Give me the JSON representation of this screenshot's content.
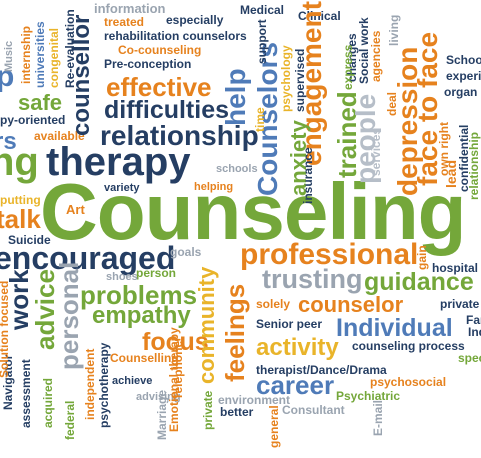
{
  "colors": {
    "green": "#74a73a",
    "dark_green": "#5a8f2a",
    "orange": "#e6821e",
    "blue": "#4f7bb8",
    "navy": "#253e63",
    "gray": "#9aa4b0",
    "light_gray": "#b6bec8",
    "yellow": "#e9b42a"
  },
  "words": [
    {
      "text": "Counseling",
      "c": "green"
    },
    {
      "text": "therapy",
      "c": "navy"
    },
    {
      "text": "encouraged",
      "c": "navy"
    },
    {
      "text": "relationship",
      "c": "navy"
    },
    {
      "text": "effective",
      "c": "orange"
    },
    {
      "text": "difficulties",
      "c": "navy"
    },
    {
      "text": "professional",
      "c": "orange"
    },
    {
      "text": "trusting",
      "c": "gray"
    },
    {
      "text": "guidance",
      "c": "green"
    },
    {
      "text": "problems",
      "c": "green"
    },
    {
      "text": "empathy",
      "c": "green"
    },
    {
      "text": "counselor",
      "c": "orange"
    },
    {
      "text": "Individual",
      "c": "blue"
    },
    {
      "text": "focus",
      "c": "orange"
    },
    {
      "text": "activity",
      "c": "yellow"
    },
    {
      "text": "career",
      "c": "blue"
    },
    {
      "text": "safe",
      "c": "green"
    },
    {
      "text": "talk",
      "c": "orange"
    },
    {
      "text": "Art",
      "c": "orange"
    },
    {
      "text": "Suicide",
      "c": "navy"
    },
    {
      "text": "goals",
      "c": "gray"
    },
    {
      "text": "person",
      "c": "green"
    },
    {
      "text": "shoes",
      "c": "gray"
    },
    {
      "text": "solely",
      "c": "orange"
    },
    {
      "text": "Senior peer",
      "c": "navy"
    },
    {
      "text": "hospital",
      "c": "navy"
    },
    {
      "text": "private",
      "c": "navy"
    },
    {
      "text": "counseling process",
      "c": "navy"
    },
    {
      "text": "Counselling",
      "c": "orange"
    },
    {
      "text": "therapist/Dance/Drama",
      "c": "navy"
    },
    {
      "text": "psychosocial",
      "c": "orange"
    },
    {
      "text": "Psychiatric",
      "c": "green"
    },
    {
      "text": "Consultant",
      "c": "gray"
    },
    {
      "text": "environment",
      "c": "gray"
    },
    {
      "text": "better",
      "c": "navy"
    },
    {
      "text": "schools",
      "c": "gray"
    },
    {
      "text": "helping",
      "c": "orange"
    },
    {
      "text": "variety",
      "c": "navy"
    },
    {
      "text": "putting",
      "c": "yellow"
    },
    {
      "text": "available",
      "c": "orange"
    },
    {
      "text": "py-oriented",
      "c": "navy"
    },
    {
      "text": "information",
      "c": "gray"
    },
    {
      "text": "treated",
      "c": "orange"
    },
    {
      "text": "especially",
      "c": "navy"
    },
    {
      "text": "Medical",
      "c": "navy"
    },
    {
      "text": "Clinical",
      "c": "navy"
    },
    {
      "text": "rehabilitation counselors",
      "c": "navy"
    },
    {
      "text": "Co-counseling",
      "c": "orange"
    },
    {
      "text": "Pre-conception",
      "c": "navy"
    },
    {
      "text": "Schoo",
      "c": "navy"
    },
    {
      "text": "experi",
      "c": "navy"
    },
    {
      "text": "organ",
      "c": "navy"
    },
    {
      "text": "Family",
      "c": "navy"
    },
    {
      "text": "Individual",
      "c": "navy"
    },
    {
      "text": "spec",
      "c": "green"
    },
    {
      "text": "achieve",
      "c": "navy"
    },
    {
      "text": "advising",
      "c": "gray"
    },
    {
      "text": "rs",
      "c": "blue"
    },
    {
      "text": "ng",
      "c": "green"
    },
    {
      "text": "p",
      "c": "blue"
    },
    {
      "text": "counsellor",
      "c": "navy"
    },
    {
      "text": "help",
      "c": "blue"
    },
    {
      "text": "Counselors",
      "c": "blue"
    },
    {
      "text": "engagement",
      "c": "orange"
    },
    {
      "text": "anxiety",
      "c": "green"
    },
    {
      "text": "trained",
      "c": "green"
    },
    {
      "text": "people",
      "c": "light_gray"
    },
    {
      "text": "depression",
      "c": "orange"
    },
    {
      "text": "face to face",
      "c": "orange"
    },
    {
      "text": "community",
      "c": "yellow"
    },
    {
      "text": "feelings",
      "c": "orange"
    },
    {
      "text": "advice",
      "c": "green"
    },
    {
      "text": "personal",
      "c": "gray"
    },
    {
      "text": "work",
      "c": "navy"
    },
    {
      "text": "psychotherapy",
      "c": "navy"
    },
    {
      "text": "Emotional therapy",
      "c": "orange"
    },
    {
      "text": "private",
      "c": "green"
    },
    {
      "text": "Telephone",
      "c": "orange"
    },
    {
      "text": "Marriage",
      "c": "gray"
    },
    {
      "text": "independent",
      "c": "orange"
    },
    {
      "text": "acquired",
      "c": "green"
    },
    {
      "text": "assessment",
      "c": "navy"
    },
    {
      "text": "Navigator",
      "c": "navy"
    },
    {
      "text": "federal",
      "c": "green"
    },
    {
      "text": "Solution focused",
      "c": "orange"
    },
    {
      "text": "insurance",
      "c": "navy"
    },
    {
      "text": "general",
      "c": "orange"
    },
    {
      "text": "E-mail",
      "c": "gray"
    },
    {
      "text": "gain",
      "c": "orange"
    },
    {
      "text": "universities",
      "c": "blue"
    },
    {
      "text": "congenital",
      "c": "yellow"
    },
    {
      "text": "Re-evaluation",
      "c": "navy"
    },
    {
      "text": "internship",
      "c": "orange"
    },
    {
      "text": "Music",
      "c": "gray"
    },
    {
      "text": "time",
      "c": "yellow"
    },
    {
      "text": "psychology",
      "c": "yellow"
    },
    {
      "text": "supervised",
      "c": "navy"
    },
    {
      "text": "changes",
      "c": "navy"
    },
    {
      "text": "services",
      "c": "light_gray"
    },
    {
      "text": "express",
      "c": "green"
    },
    {
      "text": "Social work",
      "c": "navy"
    },
    {
      "text": "agencies",
      "c": "orange"
    },
    {
      "text": "living",
      "c": "gray"
    },
    {
      "text": "deal",
      "c": "orange"
    },
    {
      "text": "own right",
      "c": "orange"
    },
    {
      "text": "confidential",
      "c": "navy"
    },
    {
      "text": "relationship",
      "c": "green"
    },
    {
      "text": "lead",
      "c": "orange"
    },
    {
      "text": "support",
      "c": "navy"
    }
  ]
}
